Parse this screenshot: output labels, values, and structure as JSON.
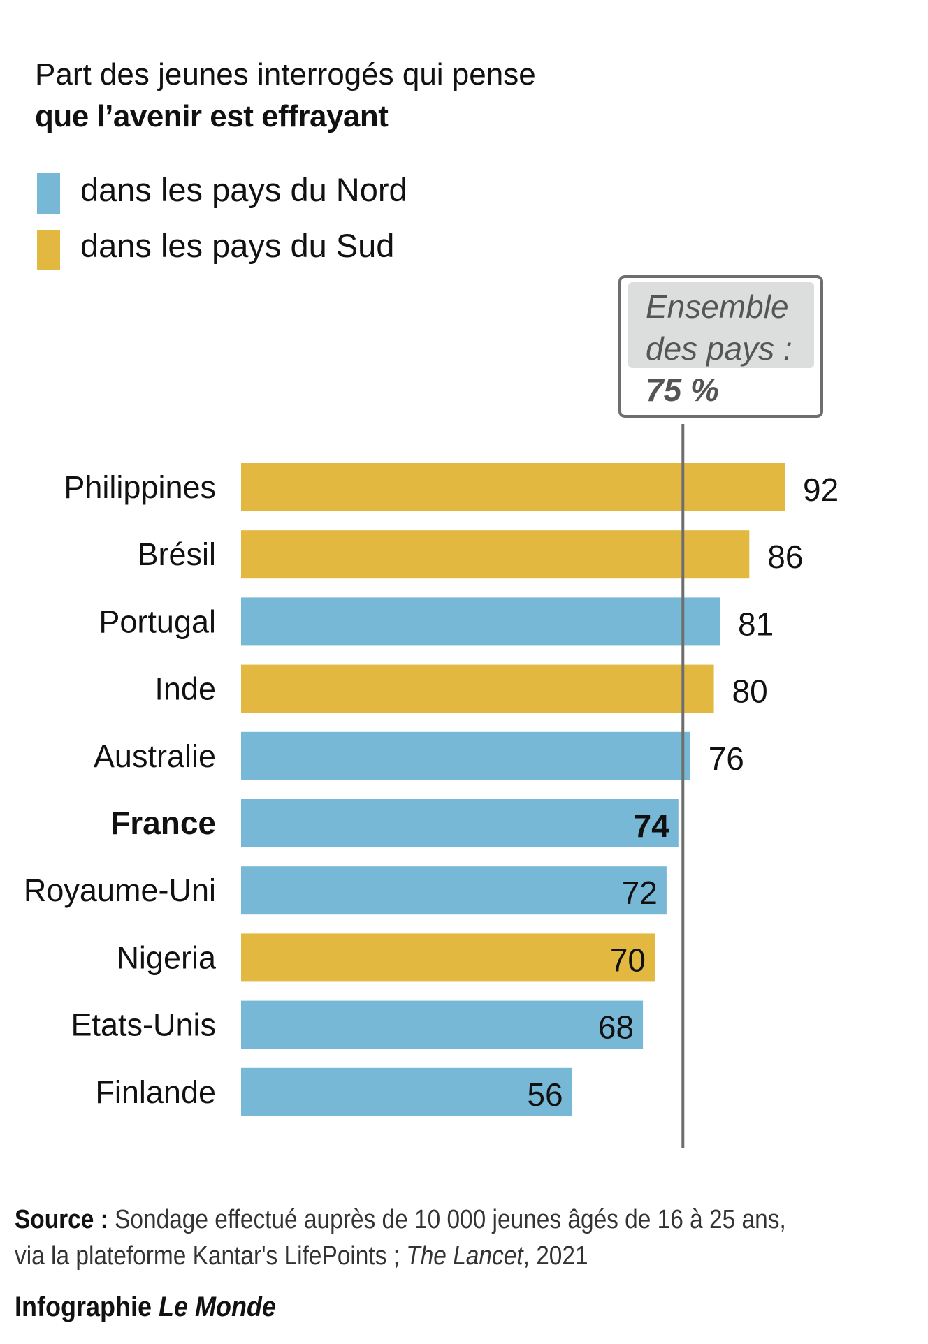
{
  "colors": {
    "nord": "#77B8D6",
    "sud": "#E3B840",
    "average_line": "#6E6E6E",
    "average_box_fill": "#DCDDDD",
    "average_text": "#555555"
  },
  "chart_data": {
    "type": "bar",
    "orientation": "horizontal",
    "title": "Part des jeunes interrogés qui pense",
    "subtitle": "que l’avenir est effrayant",
    "legend": [
      {
        "key": "nord",
        "label": "dans les pays du Nord"
      },
      {
        "key": "sud",
        "label": "dans les pays du Sud"
      }
    ],
    "legend_position": "top-left",
    "unit": "%",
    "xlim": [
      0,
      100
    ],
    "categories": [
      "Philippines",
      "Brésil",
      "Portugal",
      "Inde",
      "Australie",
      "France",
      "Royaume-Uni",
      "Nigeria",
      "Etats-Unis",
      "Finlande"
    ],
    "values": [
      92,
      86,
      81,
      80,
      76,
      74,
      72,
      70,
      68,
      56
    ],
    "groups": [
      "sud",
      "sud",
      "nord",
      "sud",
      "nord",
      "nord",
      "nord",
      "sud",
      "nord",
      "nord"
    ],
    "highlight": "France",
    "reference_line": {
      "value": 75,
      "label_line1": "Ensemble",
      "label_line2": "des pays :",
      "label_value": "75 %"
    }
  },
  "footer": {
    "source_label": "Source :",
    "source_line1": "Sondage effectué auprès de 10 000 jeunes âgés de 16 à 25 ans,",
    "source_line2_a": "via la plateforme Kantar's LifePoints ; ",
    "source_line2_italic": "The Lancet",
    "source_line2_b": ", 2021",
    "credit_a": "Infographie ",
    "credit_italic": "Le Monde"
  }
}
